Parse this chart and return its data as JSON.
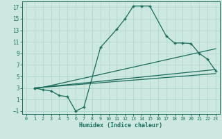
{
  "xlabel": "Humidex (Indice chaleur)",
  "xlim": [
    -0.5,
    23.5
  ],
  "ylim": [
    -1.5,
    18
  ],
  "xticks": [
    0,
    1,
    2,
    3,
    4,
    5,
    6,
    7,
    8,
    9,
    10,
    11,
    12,
    13,
    14,
    15,
    16,
    17,
    18,
    19,
    20,
    21,
    22,
    23
  ],
  "yticks": [
    -1,
    1,
    3,
    5,
    7,
    9,
    11,
    13,
    15,
    17
  ],
  "bg_color": "#cce8e0",
  "line_color": "#1a6b5a",
  "grid_color": "#aad4cc",
  "curve_main_x": [
    1,
    2,
    3,
    4,
    5,
    6,
    7,
    9,
    11,
    12,
    13,
    14,
    15,
    17,
    18,
    19,
    20,
    21,
    22,
    23
  ],
  "curve_main_y": [
    3,
    2.7,
    2.5,
    1.7,
    1.5,
    -1.0,
    -0.3,
    10,
    13.2,
    15,
    17.2,
    17.2,
    17.2,
    12,
    10.8,
    10.8,
    10.7,
    9,
    8,
    6
  ],
  "line1_x": [
    1,
    23
  ],
  "line1_y": [
    3.0,
    5.5
  ],
  "line2_x": [
    1,
    23
  ],
  "line2_y": [
    3.0,
    6.2
  ],
  "line3_x": [
    1,
    23
  ],
  "line3_y": [
    2.8,
    9.8
  ]
}
